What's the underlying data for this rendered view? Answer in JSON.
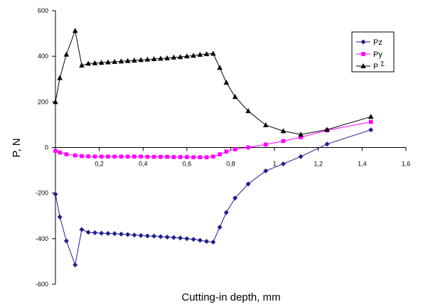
{
  "chart_data": {
    "type": "line",
    "title": "",
    "xlabel": "Cutting-in depth, mm",
    "ylabel": "P, N",
    "xlim": [
      0,
      1.6
    ],
    "ylim": [
      -600,
      600
    ],
    "x_ticks": [
      "0,2",
      "0,4",
      "0,6",
      "0,8",
      "1",
      "1,2",
      "1,4",
      "1,6"
    ],
    "y_ticks": [
      "600",
      "400",
      "200",
      "0",
      "-200",
      "-400",
      "-600"
    ],
    "grid": false,
    "legend_position": "top-right",
    "legend": [
      {
        "label": "Pz",
        "sup": ""
      },
      {
        "label": "Py",
        "sup": ""
      },
      {
        "label": "P",
        "sup": "Σ"
      }
    ],
    "series": [
      {
        "name": "Pz",
        "color": "#1f1f8f",
        "marker": "diamond",
        "x": [
          0,
          0.02,
          0.05,
          0.09,
          0.12,
          0.15,
          0.18,
          0.21,
          0.24,
          0.27,
          0.3,
          0.33,
          0.36,
          0.39,
          0.42,
          0.45,
          0.48,
          0.51,
          0.54,
          0.57,
          0.6,
          0.63,
          0.66,
          0.69,
          0.72,
          0.75,
          0.78,
          0.82,
          0.88,
          0.96,
          1.04,
          1.12,
          1.24,
          1.44
        ],
        "y": [
          -205,
          -305,
          -410,
          -515,
          -360,
          -372,
          -374,
          -376,
          -377,
          -378,
          -380,
          -382,
          -384,
          -386,
          -388,
          -389,
          -391,
          -393,
          -395,
          -397,
          -400,
          -403,
          -407,
          -412,
          -415,
          -350,
          -285,
          -222,
          -160,
          -103,
          -72,
          -40,
          15,
          77
        ]
      },
      {
        "name": "Py",
        "color": "#ff00ff",
        "marker": "square",
        "x": [
          0,
          0.02,
          0.05,
          0.09,
          0.12,
          0.15,
          0.18,
          0.21,
          0.24,
          0.27,
          0.3,
          0.33,
          0.36,
          0.39,
          0.42,
          0.45,
          0.48,
          0.51,
          0.54,
          0.57,
          0.6,
          0.63,
          0.66,
          0.69,
          0.72,
          0.75,
          0.78,
          0.82,
          0.88,
          0.96,
          1.04,
          1.12,
          1.24,
          1.44
        ],
        "y": [
          -15,
          -22,
          -30,
          -35,
          -38,
          -39,
          -40,
          -40,
          -40,
          -40,
          -40,
          -40,
          -40,
          -40,
          -41,
          -41,
          -41,
          -41,
          -42,
          -42,
          -42,
          -43,
          -43,
          -43,
          -40,
          -30,
          -18,
          -8,
          0,
          13,
          28,
          45,
          75,
          112
        ]
      },
      {
        "name": "PΣ",
        "color": "#000000",
        "marker": "triangle",
        "x": [
          0,
          0.02,
          0.05,
          0.09,
          0.12,
          0.15,
          0.18,
          0.21,
          0.24,
          0.27,
          0.3,
          0.33,
          0.36,
          0.39,
          0.42,
          0.45,
          0.48,
          0.51,
          0.54,
          0.57,
          0.6,
          0.63,
          0.66,
          0.69,
          0.72,
          0.75,
          0.78,
          0.82,
          0.88,
          0.96,
          1.04,
          1.12,
          1.24,
          1.44
        ],
        "y": [
          200,
          305,
          408,
          512,
          360,
          368,
          370,
          372,
          374,
          376,
          378,
          380,
          382,
          384,
          386,
          388,
          390,
          392,
          395,
          397,
          400,
          403,
          407,
          410,
          412,
          350,
          285,
          222,
          160,
          98,
          72,
          57,
          78,
          135
        ]
      }
    ]
  }
}
